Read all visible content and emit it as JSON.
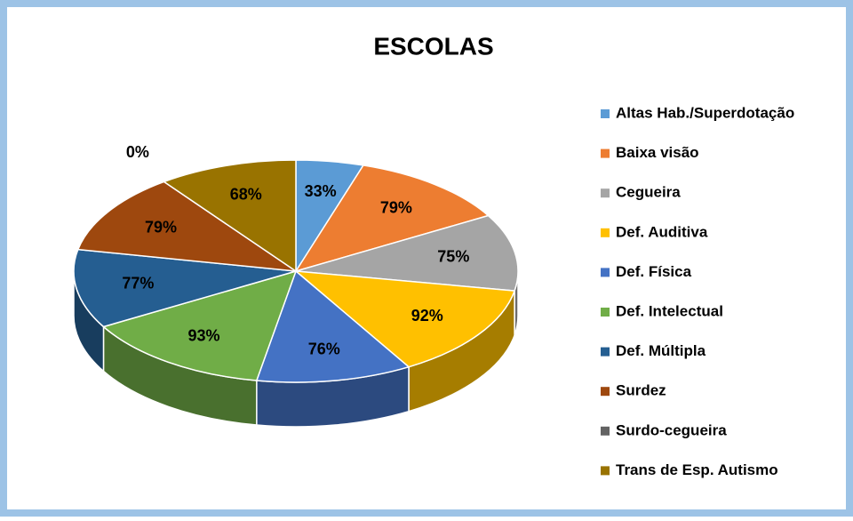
{
  "chart_data": {
    "type": "pie3d",
    "title": "ESCOLAS",
    "categories": [
      "Altas Hab./Superdotação",
      "Baixa visão",
      "Cegueira",
      "Def. Auditiva",
      "Def. Física",
      "Def. Intelectual",
      "Def. Múltipla",
      "Surdez",
      "Surdo-cegueira",
      "Trans de Esp. Autismo"
    ],
    "values": [
      33,
      79,
      75,
      92,
      76,
      93,
      77,
      79,
      0,
      68
    ],
    "value_labels": [
      "33%",
      "79%",
      "75%",
      "92%",
      "76%",
      "93%",
      "77%",
      "79%",
      "0%",
      "68%"
    ],
    "colors": [
      "#5b9bd5",
      "#ed7d31",
      "#a5a5a5",
      "#ffc000",
      "#4472c4",
      "#70ad47",
      "#255e91",
      "#9e480e",
      "#636363",
      "#997300"
    ],
    "legend": "right"
  }
}
